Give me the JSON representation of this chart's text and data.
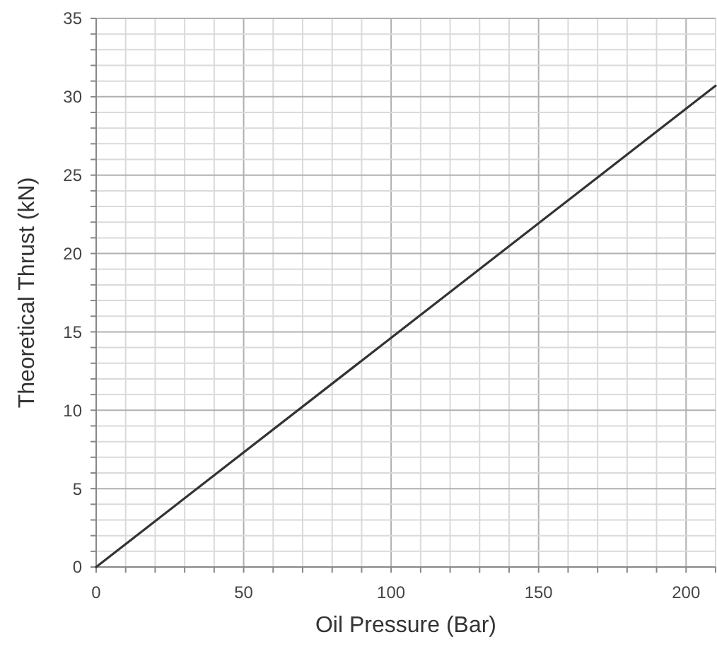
{
  "chart_data": {
    "type": "line",
    "xlabel": "Oil Pressure (Bar)",
    "ylabel": "Theoretical Thrust (kN)",
    "x": [
      0,
      210
    ],
    "series": [
      {
        "color": "#333333",
        "values": [
          0,
          30.7
        ]
      }
    ],
    "xlim": [
      0,
      210
    ],
    "ylim": [
      0,
      35
    ],
    "xticks": [
      0,
      {
        "value": 10,
        "label": null
      },
      {
        "value": 20,
        "label": null
      },
      {
        "value": 30,
        "label": null
      },
      {
        "value": 40,
        "label": null
      },
      50,
      {
        "value": 60,
        "label": null
      },
      {
        "value": 70,
        "label": null
      },
      {
        "value": 80,
        "label": null
      },
      {
        "value": 90,
        "label": null
      },
      100,
      {
        "value": 110,
        "label": null
      },
      {
        "value": 120,
        "label": null
      },
      {
        "value": 130,
        "label": null
      },
      {
        "value": 140,
        "label": null
      },
      150,
      {
        "value": 160,
        "label": null
      },
      {
        "value": 170,
        "label": null
      },
      {
        "value": 180,
        "label": null
      },
      {
        "value": 190,
        "label": null
      },
      200,
      {
        "value": 210,
        "label": null
      }
    ],
    "yticks": [
      0,
      {
        "value": 1,
        "label": null
      },
      {
        "value": 2,
        "label": null
      },
      {
        "value": 3,
        "label": null
      },
      {
        "value": 4,
        "label": null
      },
      5,
      {
        "value": 6,
        "label": null
      },
      {
        "value": 7,
        "label": null
      },
      {
        "value": 8,
        "label": null
      },
      {
        "value": 9,
        "label": null
      },
      10,
      {
        "value": 11,
        "label": null
      },
      {
        "value": 12,
        "label": null
      },
      {
        "value": 13,
        "label": null
      },
      {
        "value": 14,
        "label": null
      },
      15,
      {
        "value": 16,
        "label": null
      },
      {
        "value": 17,
        "label": null
      },
      {
        "value": 18,
        "label": null
      },
      {
        "value": 19,
        "label": null
      },
      20,
      {
        "value": 21,
        "label": null
      },
      {
        "value": 22,
        "label": null
      },
      {
        "value": 23,
        "label": null
      },
      {
        "value": 24,
        "label": null
      },
      25,
      {
        "value": 26,
        "label": null
      },
      {
        "value": 27,
        "label": null
      },
      {
        "value": 28,
        "label": null
      },
      {
        "value": 29,
        "label": null
      },
      30,
      {
        "value": 31,
        "label": null
      },
      {
        "value": 32,
        "label": null
      },
      {
        "value": 33,
        "label": null
      },
      {
        "value": 34,
        "label": null
      },
      35
    ],
    "grid": true,
    "marker": "none",
    "line_style": "solid"
  }
}
